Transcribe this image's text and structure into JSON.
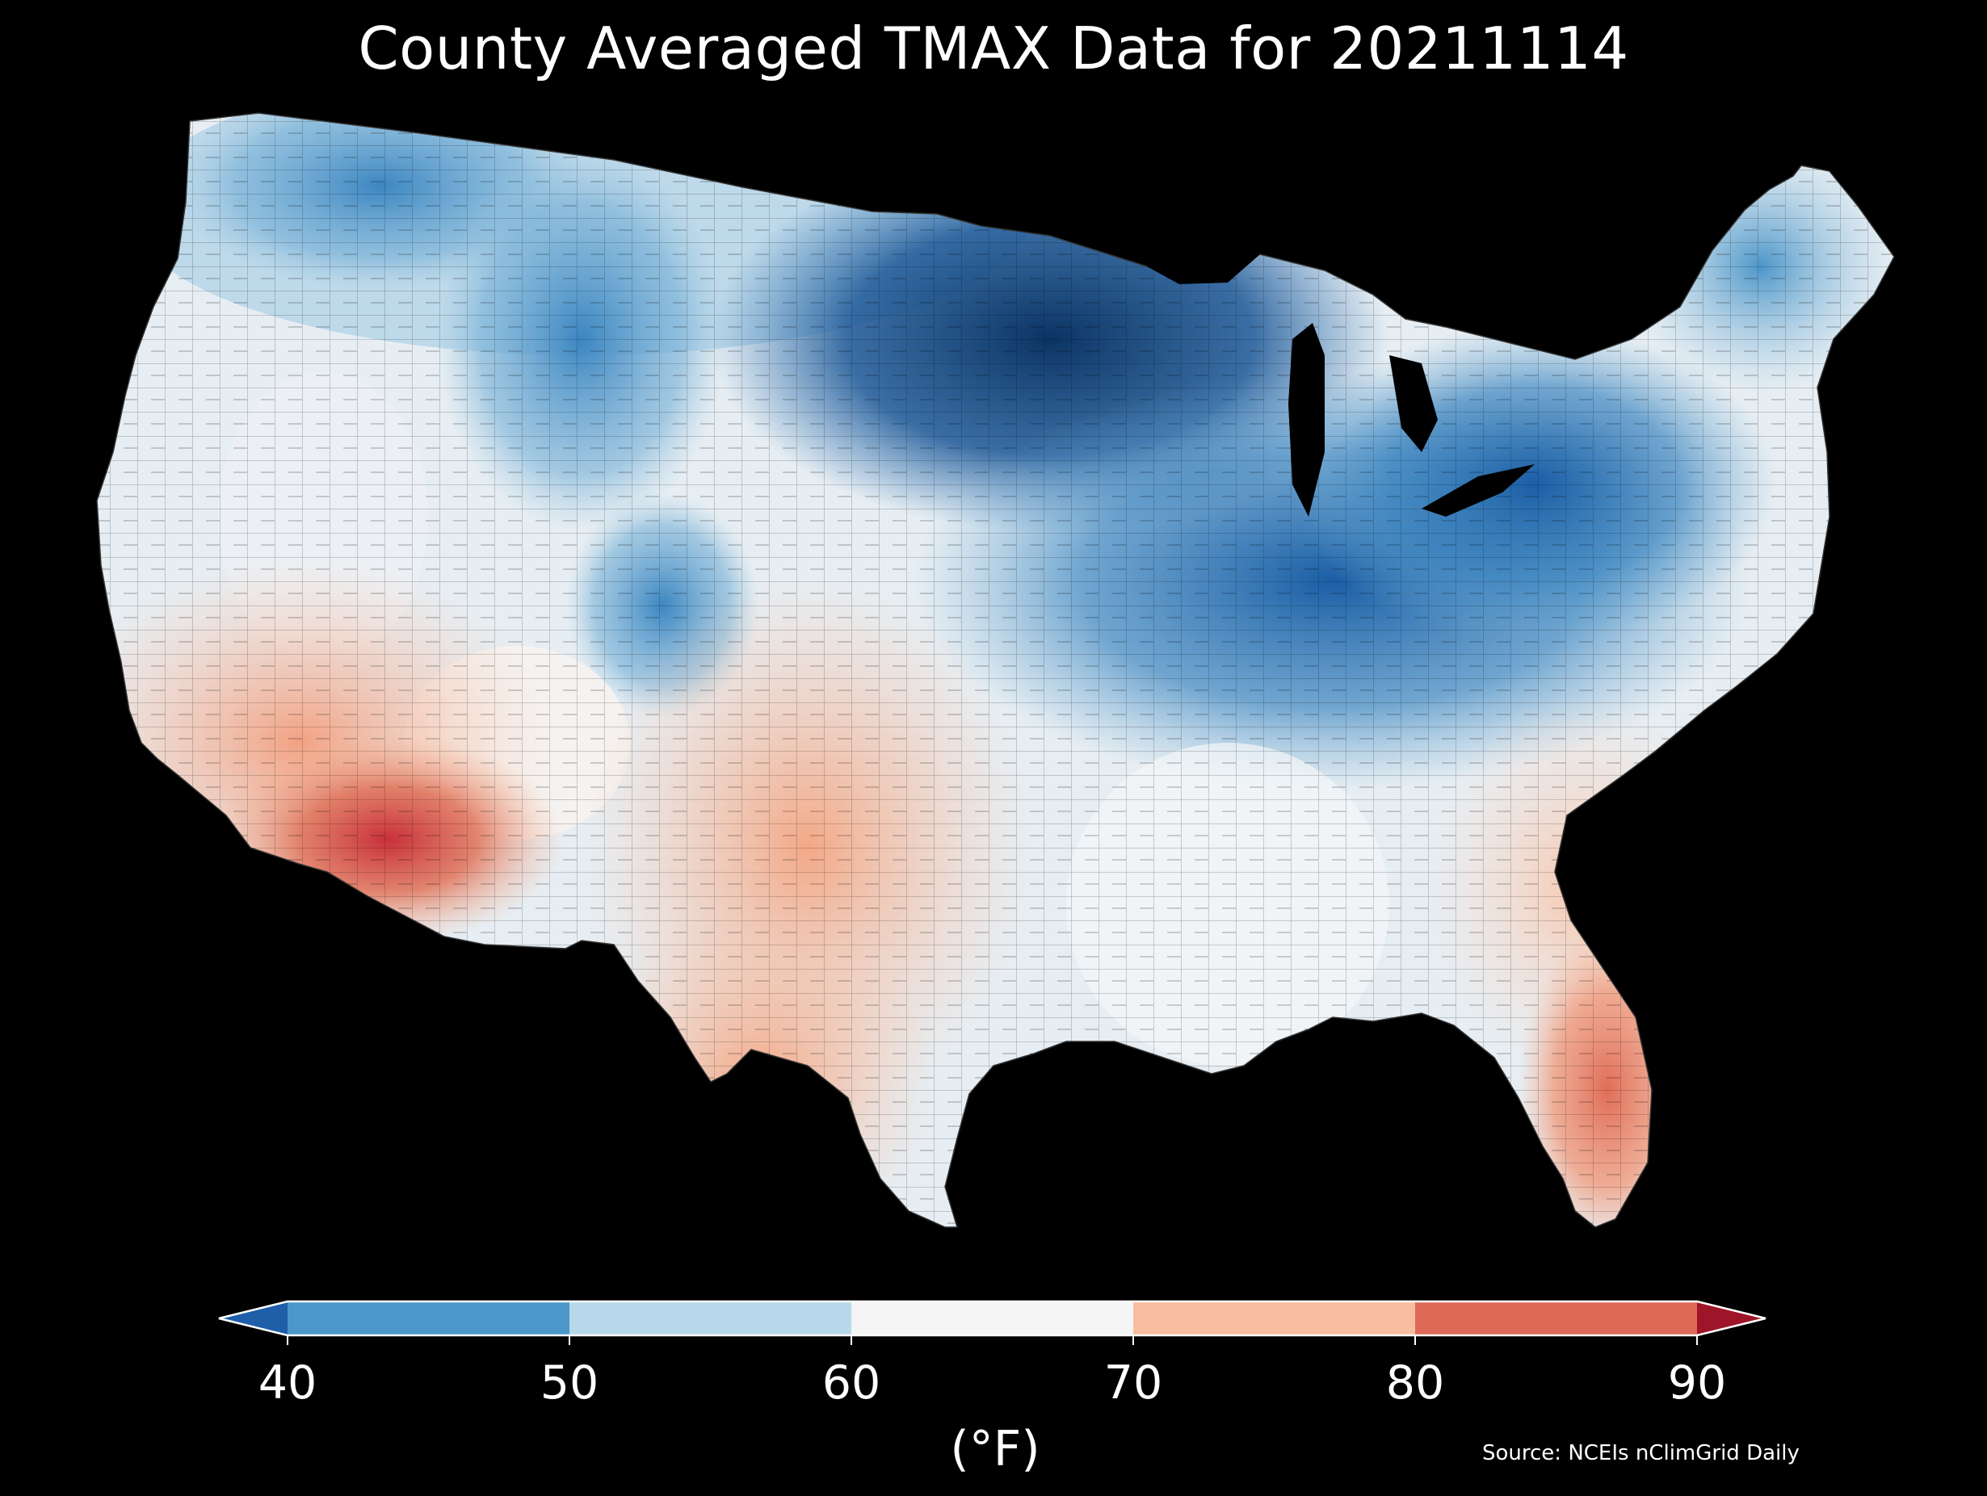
{
  "title": "County Averaged TMAX Data for 20211114",
  "colorbar": {
    "ticks": [
      "40",
      "50",
      "60",
      "70",
      "80",
      "90"
    ],
    "unit": "(°F)",
    "colors": {
      "under": "#1f5ea8",
      "bins": [
        "#4b97c9",
        "#b7d8ea",
        "#f5f5f5",
        "#f8bea1",
        "#dc6a57"
      ],
      "over": "#9e1428"
    }
  },
  "source": "Source: NCEIs nClimGrid Daily",
  "map_colors": {
    "deep_blue": "#0b3463",
    "mid_blue": "#2a71b2",
    "light_blue": "#9cc7e0",
    "pale_blue": "#dfeaf2",
    "white": "#f6f3f1",
    "peach": "#f6b89a",
    "salmon": "#e9866c",
    "red": "#c8303a"
  }
}
